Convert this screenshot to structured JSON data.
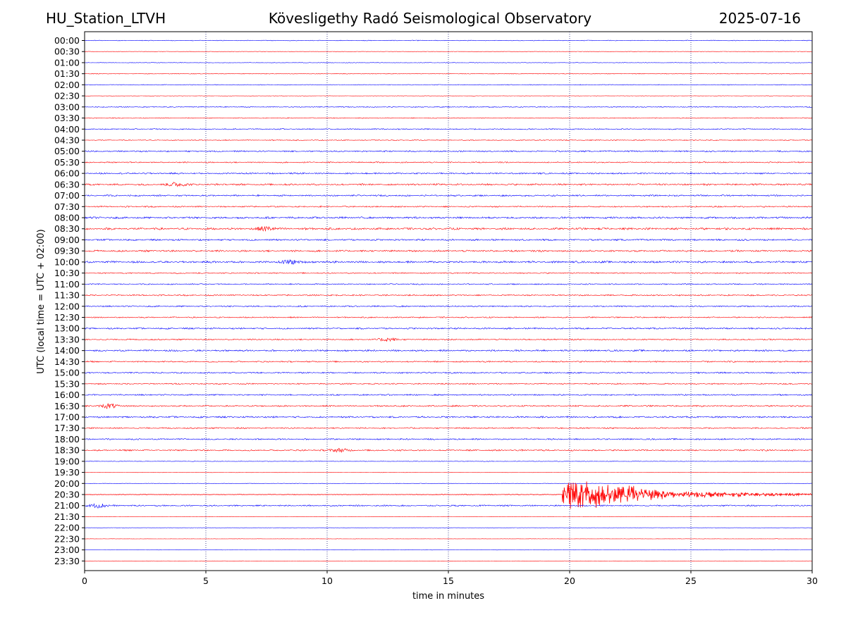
{
  "header": {
    "station": "HU_Station_LTVH",
    "observatory": "Kövesligethy Radó Seismological Observatory",
    "date": "2025-07-16"
  },
  "chart_data": {
    "type": "line",
    "title": "Kövesligethy Radó Seismological Observatory",
    "xlabel": "time in minutes",
    "ylabel": "UTC (local time = UTC + 02:00)",
    "xlim": [
      0,
      30
    ],
    "xticks": [
      0,
      5,
      10,
      15,
      20,
      25,
      30
    ],
    "grid_x": [
      5,
      10,
      15,
      20,
      25
    ],
    "row_labels": [
      "00:00",
      "00:30",
      "01:00",
      "01:30",
      "02:00",
      "02:30",
      "03:00",
      "03:30",
      "04:00",
      "04:30",
      "05:00",
      "05:30",
      "06:00",
      "06:30",
      "07:00",
      "07:30",
      "08:00",
      "08:30",
      "09:00",
      "09:30",
      "10:00",
      "10:30",
      "11:00",
      "11:30",
      "12:00",
      "12:30",
      "13:00",
      "13:30",
      "14:00",
      "14:30",
      "15:00",
      "15:30",
      "16:00",
      "16:30",
      "17:00",
      "17:30",
      "18:00",
      "18:30",
      "19:00",
      "19:30",
      "20:00",
      "20:30",
      "21:00",
      "21:30",
      "22:00",
      "22:30",
      "23:00",
      "23:30"
    ],
    "colors": [
      "#0000ff",
      "#ff0000"
    ],
    "noise_level": [
      0.5,
      0.3,
      0.4,
      0.5,
      0.5,
      0.3,
      0.7,
      0.6,
      0.8,
      0.7,
      1.0,
      0.9,
      1.1,
      1.3,
      1.1,
      1.0,
      1.4,
      1.5,
      1.2,
      1.3,
      1.4,
      0.9,
      0.8,
      1.0,
      1.0,
      0.9,
      1.1,
      1.0,
      1.2,
      1.0,
      1.0,
      0.9,
      1.0,
      1.1,
      1.2,
      1.0,
      1.0,
      1.1,
      0.4,
      0.3,
      0.3,
      0.4,
      1.0,
      0.3,
      0.2,
      0.2,
      0.2,
      0.2
    ],
    "bursts": [
      {
        "row": 13,
        "minute": 3.8,
        "amp": 3.0
      },
      {
        "row": 17,
        "minute": 7.5,
        "amp": 3.0
      },
      {
        "row": 20,
        "minute": 8.5,
        "amp": 2.8
      },
      {
        "row": 27,
        "minute": 12.5,
        "amp": 2.5
      },
      {
        "row": 33,
        "minute": 1.0,
        "amp": 3.0
      },
      {
        "row": 37,
        "minute": 10.5,
        "amp": 2.5
      },
      {
        "row": 42,
        "minute": 0.6,
        "amp": 3.0
      }
    ],
    "event": {
      "row": 41,
      "onset_minute": 19.7,
      "peak_minute": 19.95,
      "peak_amplitude": 14,
      "decay_end_minute": 30
    }
  }
}
